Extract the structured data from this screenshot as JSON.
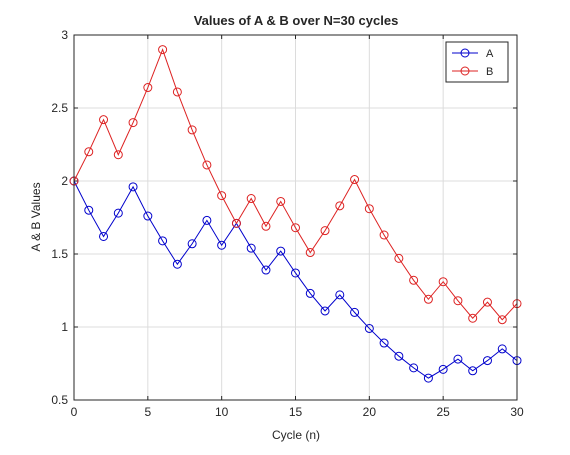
{
  "chart_data": {
    "type": "line",
    "title": "Values of A & B over N=30 cycles",
    "xlabel": "Cycle (n)",
    "ylabel": "A & B Values",
    "xlim": [
      0,
      30
    ],
    "ylim": [
      0.5,
      3
    ],
    "xticks": [
      0,
      5,
      10,
      15,
      20,
      25,
      30
    ],
    "yticks": [
      0.5,
      1,
      1.5,
      2,
      2.5,
      3
    ],
    "ytick_labels": [
      "0.5",
      "1",
      "1.5",
      "2",
      "2.5",
      "3"
    ],
    "grid": true,
    "legend_position": "top-right",
    "x": [
      0,
      1,
      2,
      3,
      4,
      5,
      6,
      7,
      8,
      9,
      10,
      11,
      12,
      13,
      14,
      15,
      16,
      17,
      18,
      19,
      20,
      21,
      22,
      23,
      24,
      25,
      26,
      27,
      28,
      29,
      30
    ],
    "series": [
      {
        "name": "A",
        "color": "#0000cc",
        "marker": "circle",
        "values": [
          2.0,
          1.8,
          1.62,
          1.78,
          1.96,
          1.76,
          1.59,
          1.43,
          1.57,
          1.73,
          1.56,
          1.71,
          1.54,
          1.39,
          1.52,
          1.37,
          1.23,
          1.11,
          1.22,
          1.1,
          0.99,
          0.89,
          0.8,
          0.72,
          0.65,
          0.71,
          0.78,
          0.7,
          0.77,
          0.85,
          0.77
        ]
      },
      {
        "name": "B",
        "color": "#dd2222",
        "marker": "circle",
        "values": [
          2.0,
          2.2,
          2.42,
          2.18,
          2.4,
          2.64,
          2.9,
          2.61,
          2.35,
          2.11,
          1.9,
          1.71,
          1.88,
          1.69,
          1.86,
          1.68,
          1.51,
          1.66,
          1.83,
          2.01,
          1.81,
          1.63,
          1.47,
          1.32,
          1.19,
          1.31,
          1.18,
          1.06,
          1.17,
          1.05,
          1.16
        ]
      }
    ]
  }
}
